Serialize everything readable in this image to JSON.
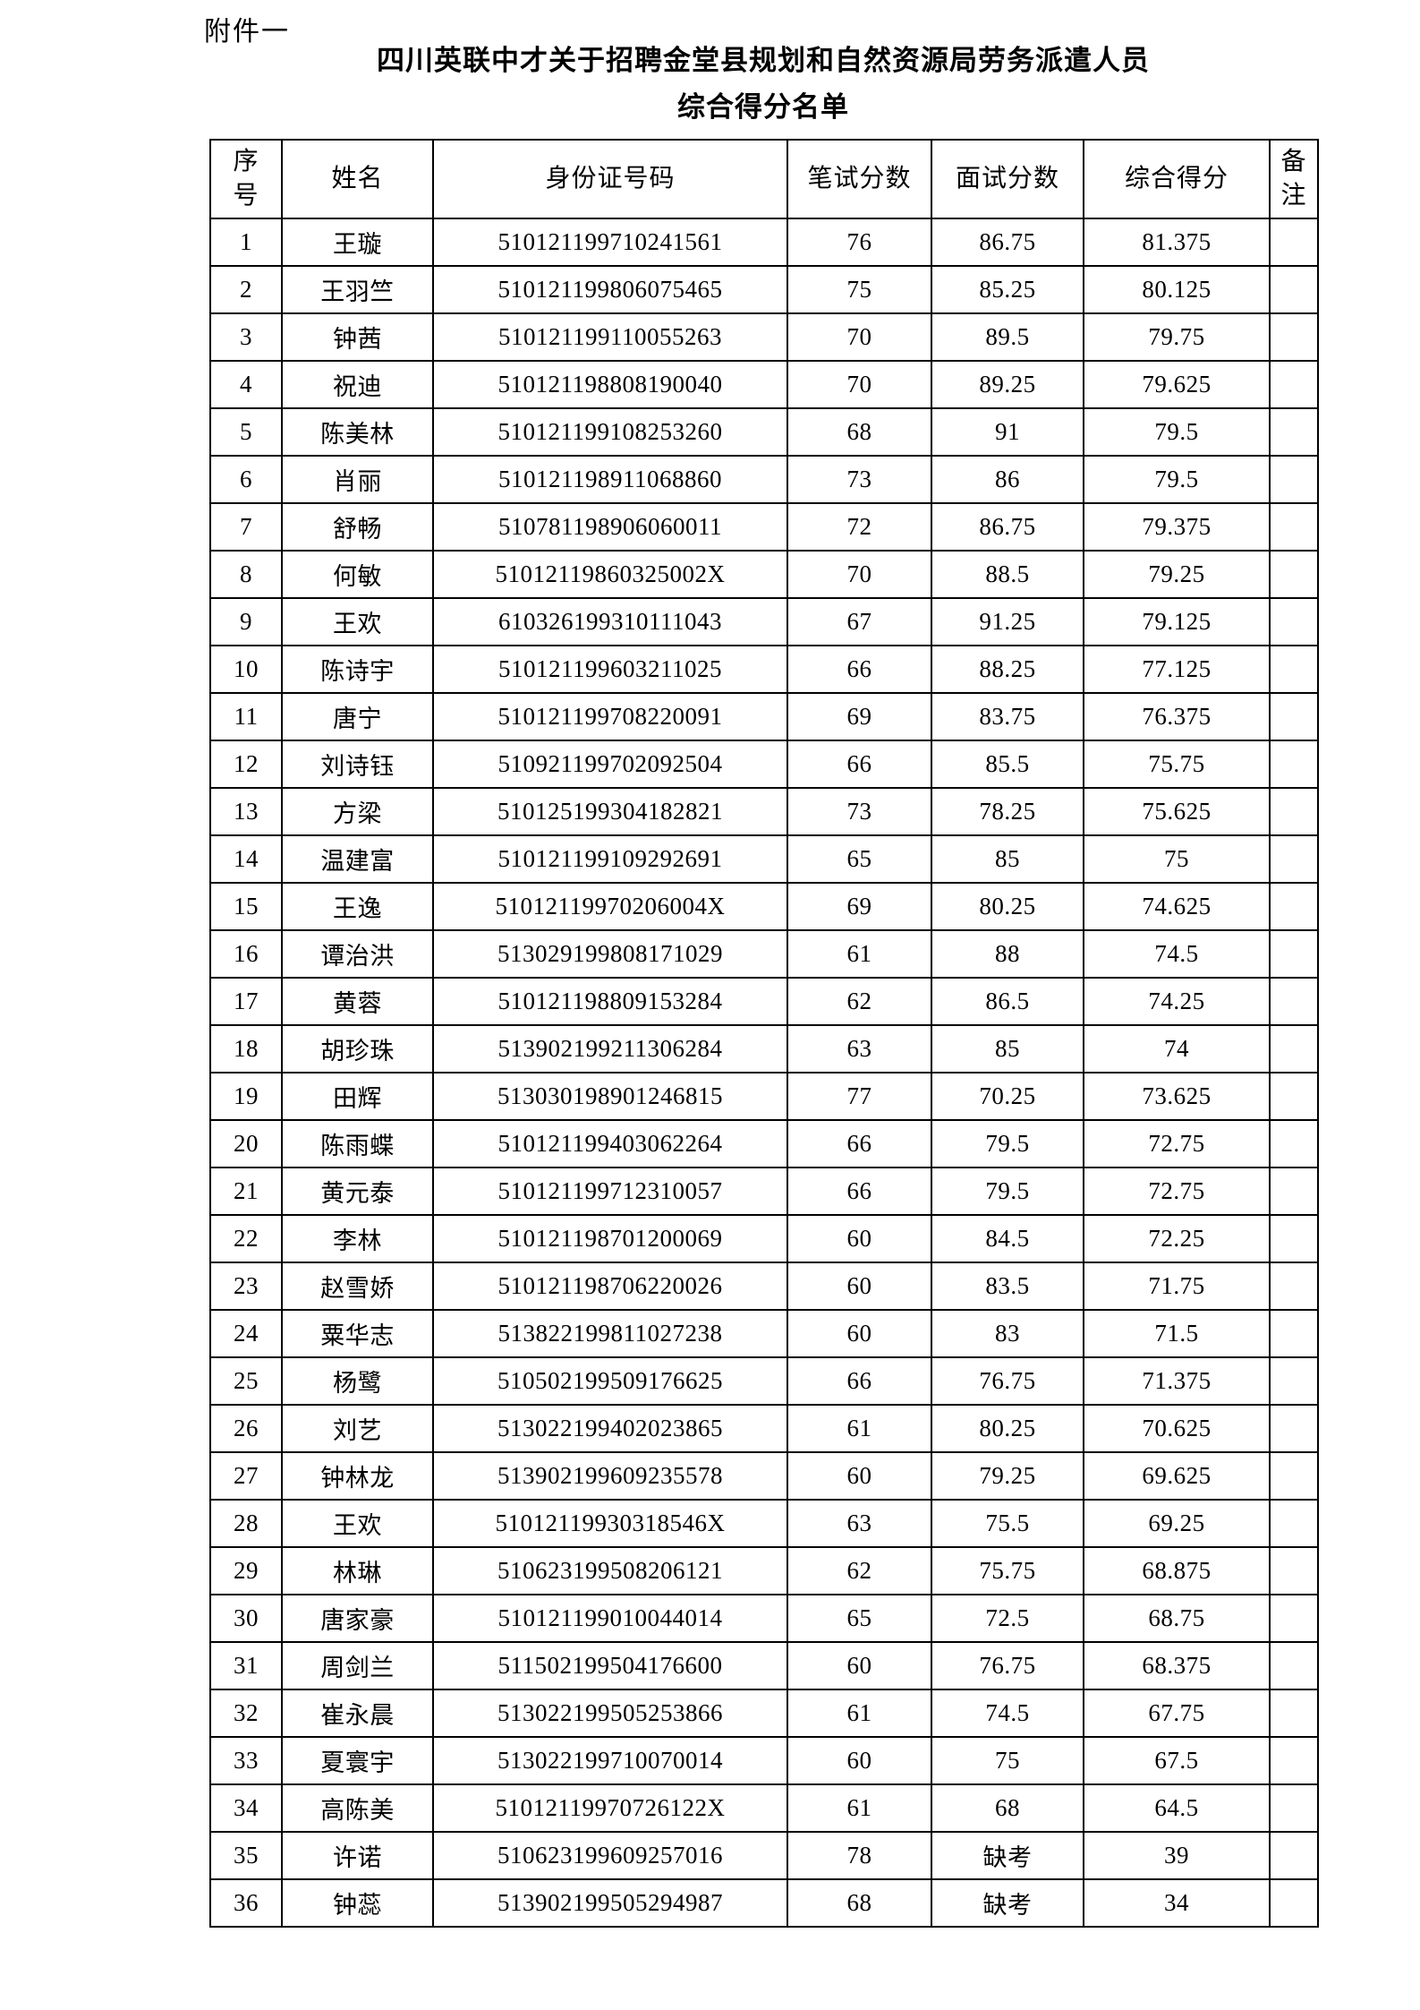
{
  "page": {
    "attachment_label": "附件一",
    "title_line1": "四川英联中才关于招聘金堂县规划和自然资源局劳务派遣人员",
    "title_line2": "综合得分名单"
  },
  "table": {
    "columns": [
      {
        "key": "no",
        "label": "序\n号"
      },
      {
        "key": "name",
        "label": "姓名"
      },
      {
        "key": "id_number",
        "label": "身份证号码"
      },
      {
        "key": "written_score",
        "label": "笔试分数"
      },
      {
        "key": "interview_score",
        "label": "面试分数"
      },
      {
        "key": "total_score",
        "label": "综合得分"
      },
      {
        "key": "remark",
        "label": "备\n注"
      }
    ],
    "rows": [
      {
        "no": "1",
        "name": "王璇",
        "id_number": "510121199710241561",
        "written_score": "76",
        "interview_score": "86.75",
        "total_score": "81.375",
        "remark": ""
      },
      {
        "no": "2",
        "name": "王羽竺",
        "id_number": "510121199806075465",
        "written_score": "75",
        "interview_score": "85.25",
        "total_score": "80.125",
        "remark": ""
      },
      {
        "no": "3",
        "name": "钟茜",
        "id_number": "510121199110055263",
        "written_score": "70",
        "interview_score": "89.5",
        "total_score": "79.75",
        "remark": ""
      },
      {
        "no": "4",
        "name": "祝迪",
        "id_number": "510121198808190040",
        "written_score": "70",
        "interview_score": "89.25",
        "total_score": "79.625",
        "remark": ""
      },
      {
        "no": "5",
        "name": "陈美林",
        "id_number": "510121199108253260",
        "written_score": "68",
        "interview_score": "91",
        "total_score": "79.5",
        "remark": ""
      },
      {
        "no": "6",
        "name": "肖丽",
        "id_number": "510121198911068860",
        "written_score": "73",
        "interview_score": "86",
        "total_score": "79.5",
        "remark": ""
      },
      {
        "no": "7",
        "name": "舒畅",
        "id_number": "510781198906060011",
        "written_score": "72",
        "interview_score": "86.75",
        "total_score": "79.375",
        "remark": ""
      },
      {
        "no": "8",
        "name": "何敏",
        "id_number": "51012119860325002X",
        "written_score": "70",
        "interview_score": "88.5",
        "total_score": "79.25",
        "remark": ""
      },
      {
        "no": "9",
        "name": "王欢",
        "id_number": "610326199310111043",
        "written_score": "67",
        "interview_score": "91.25",
        "total_score": "79.125",
        "remark": ""
      },
      {
        "no": "10",
        "name": "陈诗宇",
        "id_number": "510121199603211025",
        "written_score": "66",
        "interview_score": "88.25",
        "total_score": "77.125",
        "remark": ""
      },
      {
        "no": "11",
        "name": "唐宁",
        "id_number": "510121199708220091",
        "written_score": "69",
        "interview_score": "83.75",
        "total_score": "76.375",
        "remark": ""
      },
      {
        "no": "12",
        "name": "刘诗钰",
        "id_number": "510921199702092504",
        "written_score": "66",
        "interview_score": "85.5",
        "total_score": "75.75",
        "remark": ""
      },
      {
        "no": "13",
        "name": "方梁",
        "id_number": "510125199304182821",
        "written_score": "73",
        "interview_score": "78.25",
        "total_score": "75.625",
        "remark": ""
      },
      {
        "no": "14",
        "name": "温建富",
        "id_number": "510121199109292691",
        "written_score": "65",
        "interview_score": "85",
        "total_score": "75",
        "remark": ""
      },
      {
        "no": "15",
        "name": "王逸",
        "id_number": "51012119970206004X",
        "written_score": "69",
        "interview_score": "80.25",
        "total_score": "74.625",
        "remark": ""
      },
      {
        "no": "16",
        "name": "谭治洪",
        "id_number": "513029199808171029",
        "written_score": "61",
        "interview_score": "88",
        "total_score": "74.5",
        "remark": ""
      },
      {
        "no": "17",
        "name": "黄蓉",
        "id_number": "510121198809153284",
        "written_score": "62",
        "interview_score": "86.5",
        "total_score": "74.25",
        "remark": ""
      },
      {
        "no": "18",
        "name": "胡珍珠",
        "id_number": "513902199211306284",
        "written_score": "63",
        "interview_score": "85",
        "total_score": "74",
        "remark": ""
      },
      {
        "no": "19",
        "name": "田辉",
        "id_number": "513030198901246815",
        "written_score": "77",
        "interview_score": "70.25",
        "total_score": "73.625",
        "remark": ""
      },
      {
        "no": "20",
        "name": "陈雨蝶",
        "id_number": "510121199403062264",
        "written_score": "66",
        "interview_score": "79.5",
        "total_score": "72.75",
        "remark": ""
      },
      {
        "no": "21",
        "name": "黄元泰",
        "id_number": "510121199712310057",
        "written_score": "66",
        "interview_score": "79.5",
        "total_score": "72.75",
        "remark": ""
      },
      {
        "no": "22",
        "name": "李林",
        "id_number": "510121198701200069",
        "written_score": "60",
        "interview_score": "84.5",
        "total_score": "72.25",
        "remark": ""
      },
      {
        "no": "23",
        "name": "赵雪娇",
        "id_number": "510121198706220026",
        "written_score": "60",
        "interview_score": "83.5",
        "total_score": "71.75",
        "remark": ""
      },
      {
        "no": "24",
        "name": "粟华志",
        "id_number": "513822199811027238",
        "written_score": "60",
        "interview_score": "83",
        "total_score": "71.5",
        "remark": ""
      },
      {
        "no": "25",
        "name": "杨鹭",
        "id_number": "510502199509176625",
        "written_score": "66",
        "interview_score": "76.75",
        "total_score": "71.375",
        "remark": ""
      },
      {
        "no": "26",
        "name": "刘艺",
        "id_number": "513022199402023865",
        "written_score": "61",
        "interview_score": "80.25",
        "total_score": "70.625",
        "remark": ""
      },
      {
        "no": "27",
        "name": "钟林龙",
        "id_number": "513902199609235578",
        "written_score": "60",
        "interview_score": "79.25",
        "total_score": "69.625",
        "remark": ""
      },
      {
        "no": "28",
        "name": "王欢",
        "id_number": "51012119930318546X",
        "written_score": "63",
        "interview_score": "75.5",
        "total_score": "69.25",
        "remark": ""
      },
      {
        "no": "29",
        "name": "林琳",
        "id_number": "510623199508206121",
        "written_score": "62",
        "interview_score": "75.75",
        "total_score": "68.875",
        "remark": ""
      },
      {
        "no": "30",
        "name": "唐家豪",
        "id_number": "510121199010044014",
        "written_score": "65",
        "interview_score": "72.5",
        "total_score": "68.75",
        "remark": ""
      },
      {
        "no": "31",
        "name": "周剑兰",
        "id_number": "511502199504176600",
        "written_score": "60",
        "interview_score": "76.75",
        "total_score": "68.375",
        "remark": ""
      },
      {
        "no": "32",
        "name": "崔永晨",
        "id_number": "513022199505253866",
        "written_score": "61",
        "interview_score": "74.5",
        "total_score": "67.75",
        "remark": ""
      },
      {
        "no": "33",
        "name": "夏寰宇",
        "id_number": "513022199710070014",
        "written_score": "60",
        "interview_score": "75",
        "total_score": "67.5",
        "remark": ""
      },
      {
        "no": "34",
        "name": "高陈美",
        "id_number": "51012119970726122X",
        "written_score": "61",
        "interview_score": "68",
        "total_score": "64.5",
        "remark": ""
      },
      {
        "no": "35",
        "name": "许诺",
        "id_number": "510623199609257016",
        "written_score": "78",
        "interview_score": "缺考",
        "total_score": "39",
        "remark": ""
      },
      {
        "no": "36",
        "name": "钟蕊",
        "id_number": "513902199505294987",
        "written_score": "68",
        "interview_score": "缺考",
        "total_score": "34",
        "remark": ""
      }
    ]
  }
}
